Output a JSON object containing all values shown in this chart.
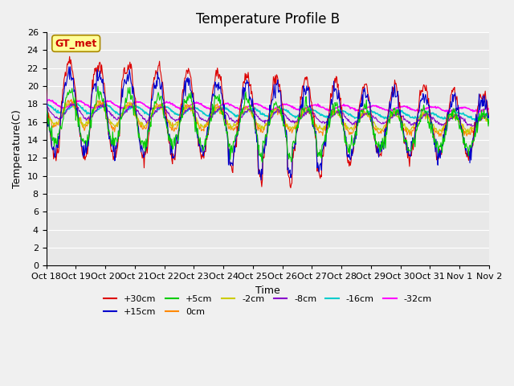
{
  "title": "Temperature Profile B",
  "xlabel": "Time",
  "ylabel": "Temperature(C)",
  "ylim": [
    0,
    26
  ],
  "yticks": [
    0,
    2,
    4,
    6,
    8,
    10,
    12,
    14,
    16,
    18,
    20,
    22,
    24,
    26
  ],
  "background_color": "#e8e8e8",
  "plot_bg_color": "#e8e8e8",
  "gt_met_label": "GT_met",
  "legend_entries": [
    {
      "label": "+30cm",
      "color": "#dd0000"
    },
    {
      "label": "+15cm",
      "color": "#0000cc"
    },
    {
      "label": "+5cm",
      "color": "#00cc00"
    },
    {
      "label": "0cm",
      "color": "#ff8800"
    },
    {
      "label": "-2cm",
      "color": "#cccc00"
    },
    {
      "label": "-8cm",
      "color": "#8800cc"
    },
    {
      "label": "-16cm",
      "color": "#00cccc"
    },
    {
      "label": "-32cm",
      "color": "#ff00ff"
    }
  ],
  "x_tick_labels": [
    "Oct 18",
    "Oct 19",
    "Oct 20",
    "Oct 21",
    "Oct 22",
    "Oct 23",
    "Oct 24",
    "Oct 25",
    "Oct 26",
    "Oct 27",
    "Oct 28",
    "Oct 29",
    "Oct 30",
    "Oct 31",
    "Nov 1",
    "Nov 2"
  ],
  "num_days": 15,
  "title_fontsize": 12,
  "axis_fontsize": 9,
  "tick_fontsize": 8
}
